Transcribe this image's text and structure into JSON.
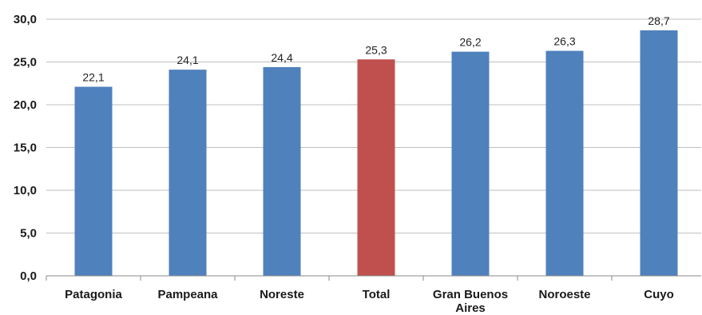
{
  "chart_data": {
    "type": "bar",
    "categories": [
      "Patagonia",
      "Pampeana",
      "Noreste",
      "Total",
      "Gran Buenos Aires",
      "Noroeste",
      "Cuyo"
    ],
    "category_lines": [
      [
        "Patagonia"
      ],
      [
        "Pampeana"
      ],
      [
        "Noreste"
      ],
      [
        "Total"
      ],
      [
        "Gran Buenos",
        "Aires"
      ],
      [
        "Noroeste"
      ],
      [
        "Cuyo"
      ]
    ],
    "values": [
      22.1,
      24.1,
      24.4,
      25.3,
      26.2,
      26.3,
      28.7
    ],
    "value_labels": [
      "22,1",
      "24,1",
      "24,4",
      "25,3",
      "26,2",
      "26,3",
      "28,7"
    ],
    "highlight_index": 3,
    "colors": {
      "bar": "#4f81bd",
      "highlight": "#c0504d",
      "grid": "#bfbfbf",
      "axis": "#888888"
    },
    "ylim": [
      0,
      30
    ],
    "yticks": [
      0,
      5,
      10,
      15,
      20,
      25,
      30
    ],
    "ytick_labels": [
      "0,0",
      "5,0",
      "10,0",
      "15,0",
      "20,0",
      "25,0",
      "30,0"
    ],
    "grid": true,
    "title": "",
    "xlabel": "",
    "ylabel": ""
  }
}
